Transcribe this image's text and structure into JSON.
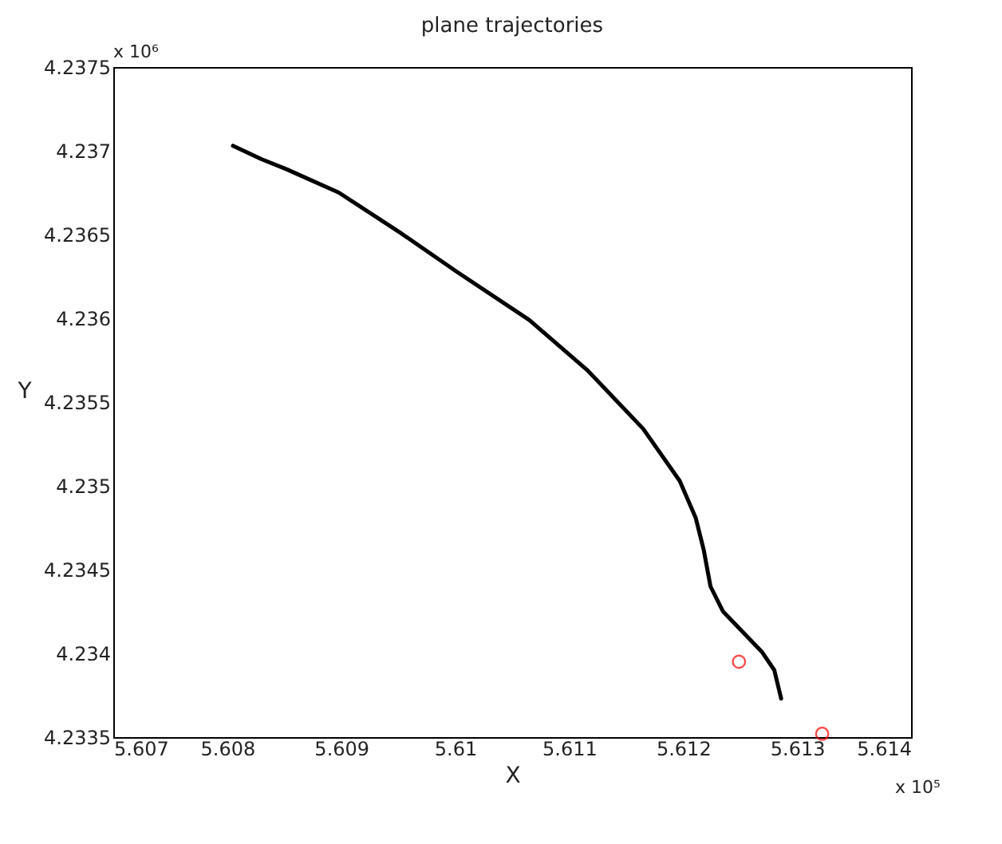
{
  "chart_data": {
    "type": "line",
    "title": "plane trajectories",
    "xlabel": "X",
    "ylabel": "Y",
    "annotations": [
      "x 10⁶",
      "x 10⁵"
    ],
    "xlim": [
      5.607,
      5.614
    ],
    "xticks": [
      5.607,
      5.608,
      5.609,
      5.61,
      5.611,
      5.612,
      5.613,
      5.614
    ],
    "ylim": [
      4.2335,
      4.2375
    ],
    "yticks": [
      4.2335,
      4.234,
      4.2345,
      4.235,
      4.2355,
      4.236,
      4.2365,
      4.237,
      4.2375
    ],
    "grid": false,
    "series": [
      {
        "color": "#000000",
        "marker": "none",
        "line_style": "solid",
        "x": [
          5.60805,
          5.6083,
          5.60852,
          5.60898,
          5.60952,
          5.61001,
          5.61065,
          5.61116,
          5.61165,
          5.61197,
          5.61211,
          5.61218,
          5.61224,
          5.61235,
          5.61252,
          5.61269,
          5.6128,
          5.61286
        ],
        "values": [
          4.23703,
          4.23695,
          4.23689,
          4.23675,
          4.23651,
          4.23628,
          4.23599,
          4.23569,
          4.23534,
          4.23503,
          4.23481,
          4.23462,
          4.2344,
          4.23425,
          4.23413,
          4.23401,
          4.2339,
          4.23373
        ]
      },
      {
        "type": "scatter",
        "color": "#ff0000",
        "marker": "circle",
        "x": [
          5.61249,
          5.61322
        ],
        "values": [
          4.23395,
          4.23352
        ]
      }
    ]
  }
}
